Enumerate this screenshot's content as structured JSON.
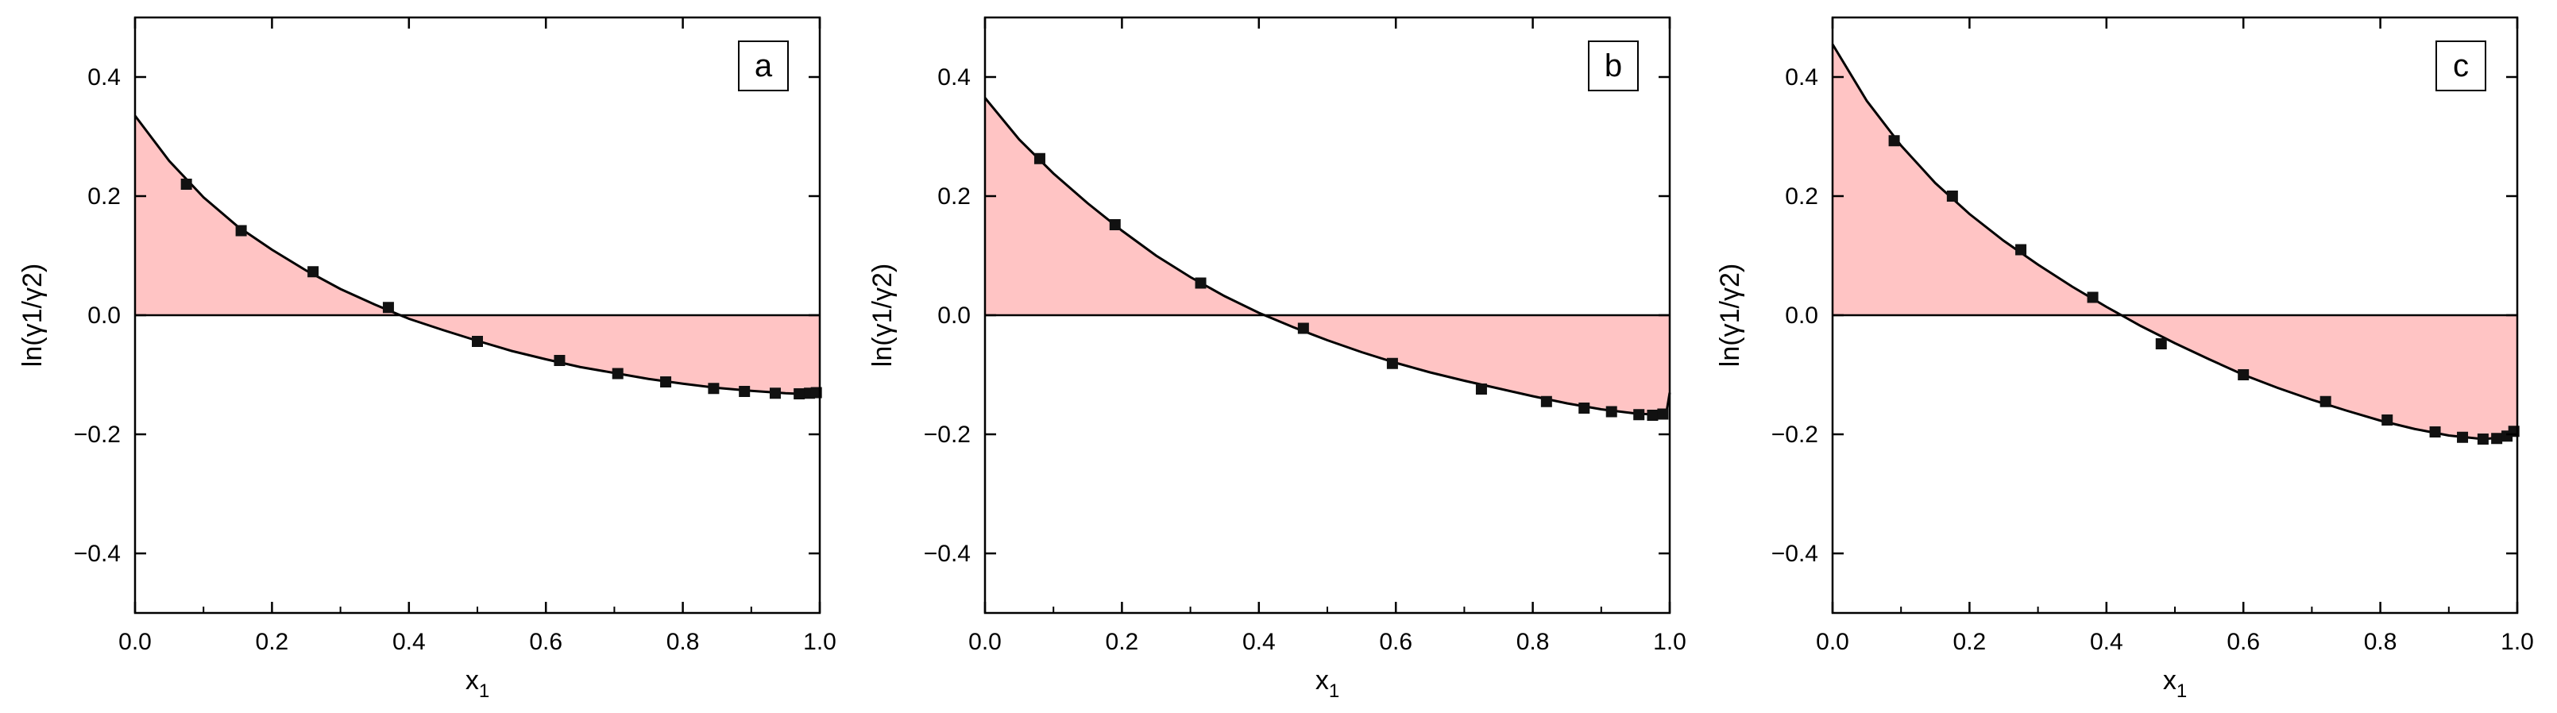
{
  "colors": {
    "fill": "#ffc4c4",
    "marker": "#111111",
    "curve": "#000000",
    "frame": "#000000"
  },
  "chart_data": [
    {
      "type": "area",
      "panel_label": "a",
      "xlabel_main": "x",
      "xlabel_sub": "1",
      "ylabel": "ln(γ1/γ2)",
      "xlim": [
        0,
        1
      ],
      "ylim": [
        -0.5,
        0.5
      ],
      "xticks": [
        0.0,
        0.2,
        0.4,
        0.6,
        0.8,
        1.0
      ],
      "xtick_labels": [
        "0.0",
        "0.2",
        "0.4",
        "0.6",
        "0.8",
        "1.0"
      ],
      "yticks": [
        -0.4,
        -0.2,
        0.0,
        0.2,
        0.4
      ],
      "ytick_labels": [
        "−0.4",
        "−0.2",
        "0.0",
        "0.2",
        "0.4"
      ],
      "grid": false,
      "reference_line_y": 0,
      "curve": {
        "x": [
          0.0,
          0.05,
          0.1,
          0.15,
          0.2,
          0.25,
          0.3,
          0.35,
          0.4,
          0.45,
          0.5,
          0.55,
          0.6,
          0.65,
          0.7,
          0.75,
          0.8,
          0.85,
          0.9,
          0.95,
          0.99,
          1.0
        ],
        "y": [
          0.335,
          0.259,
          0.198,
          0.149,
          0.11,
          0.075,
          0.044,
          0.018,
          -0.006,
          -0.025,
          -0.043,
          -0.06,
          -0.074,
          -0.087,
          -0.097,
          -0.107,
          -0.115,
          -0.122,
          -0.127,
          -0.131,
          -0.133,
          -0.133
        ]
      },
      "points": {
        "x": [
          0.075,
          0.155,
          0.26,
          0.37,
          0.5,
          0.62,
          0.705,
          0.775,
          0.845,
          0.89,
          0.935,
          0.97,
          0.985,
          0.995
        ],
        "y": [
          0.22,
          0.142,
          0.073,
          0.013,
          -0.044,
          -0.076,
          -0.098,
          -0.112,
          -0.123,
          -0.128,
          -0.131,
          -0.132,
          -0.131,
          -0.13
        ]
      }
    },
    {
      "type": "area",
      "panel_label": "b",
      "xlabel_main": "x",
      "xlabel_sub": "1",
      "ylabel": "ln(γ1/γ2)",
      "xlim": [
        0,
        1
      ],
      "ylim": [
        -0.5,
        0.5
      ],
      "xticks": [
        0.0,
        0.2,
        0.4,
        0.6,
        0.8,
        1.0
      ],
      "xtick_labels": [
        "0.0",
        "0.2",
        "0.4",
        "0.6",
        "0.8",
        "1.0"
      ],
      "yticks": [
        -0.4,
        -0.2,
        0.0,
        0.2,
        0.4
      ],
      "ytick_labels": [
        "−0.4",
        "−0.2",
        "0.0",
        "0.2",
        "0.4"
      ],
      "grid": false,
      "reference_line_y": 0,
      "curve": {
        "x": [
          0.0,
          0.05,
          0.1,
          0.15,
          0.2,
          0.25,
          0.3,
          0.35,
          0.4,
          0.45,
          0.5,
          0.55,
          0.6,
          0.65,
          0.7,
          0.75,
          0.8,
          0.85,
          0.9,
          0.95,
          0.98,
          0.995,
          1.0
        ],
        "y": [
          0.365,
          0.295,
          0.238,
          0.188,
          0.142,
          0.1,
          0.064,
          0.032,
          0.004,
          -0.02,
          -0.042,
          -0.062,
          -0.08,
          -0.096,
          -0.11,
          -0.123,
          -0.136,
          -0.148,
          -0.158,
          -0.165,
          -0.167,
          -0.165,
          -0.13
        ]
      },
      "points": {
        "x": [
          0.08,
          0.19,
          0.315,
          0.465,
          0.595,
          0.725,
          0.82,
          0.875,
          0.915,
          0.955,
          0.975,
          0.99
        ],
        "y": [
          0.263,
          0.152,
          0.054,
          -0.022,
          -0.081,
          -0.124,
          -0.145,
          -0.156,
          -0.162,
          -0.167,
          -0.168,
          -0.166
        ]
      }
    },
    {
      "type": "area",
      "panel_label": "c",
      "xlabel_main": "x",
      "xlabel_sub": "1",
      "ylabel": "ln(γ1/γ2)",
      "xlim": [
        0,
        1
      ],
      "ylim": [
        -0.5,
        0.5
      ],
      "xticks": [
        0.0,
        0.2,
        0.4,
        0.6,
        0.8,
        1.0
      ],
      "xtick_labels": [
        "0.0",
        "0.2",
        "0.4",
        "0.6",
        "0.8",
        "1.0"
      ],
      "yticks": [
        -0.4,
        -0.2,
        0.0,
        0.2,
        0.4
      ],
      "ytick_labels": [
        "−0.4",
        "−0.2",
        "0.0",
        "0.2",
        "0.4"
      ],
      "grid": false,
      "reference_line_y": 0,
      "curve": {
        "x": [
          0.0,
          0.05,
          0.1,
          0.15,
          0.2,
          0.25,
          0.3,
          0.35,
          0.4,
          0.45,
          0.5,
          0.55,
          0.6,
          0.65,
          0.7,
          0.75,
          0.8,
          0.85,
          0.9,
          0.95,
          0.98,
          1.0
        ],
        "y": [
          0.455,
          0.36,
          0.285,
          0.222,
          0.17,
          0.125,
          0.085,
          0.048,
          0.014,
          -0.018,
          -0.047,
          -0.074,
          -0.1,
          -0.122,
          -0.142,
          -0.16,
          -0.177,
          -0.191,
          -0.202,
          -0.208,
          -0.205,
          -0.19
        ]
      },
      "points": {
        "x": [
          0.09,
          0.175,
          0.275,
          0.38,
          0.48,
          0.6,
          0.72,
          0.81,
          0.88,
          0.92,
          0.95,
          0.97,
          0.985,
          0.995
        ],
        "y": [
          0.293,
          0.2,
          0.11,
          0.03,
          -0.048,
          -0.1,
          -0.145,
          -0.176,
          -0.196,
          -0.205,
          -0.208,
          -0.207,
          -0.203,
          -0.195
        ]
      }
    }
  ]
}
